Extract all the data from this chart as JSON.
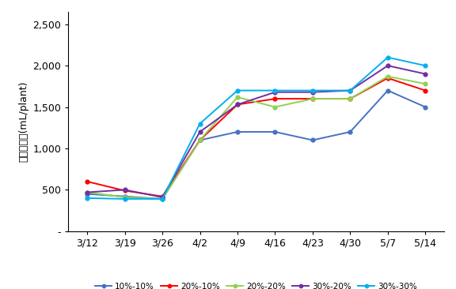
{
  "x_labels": [
    "3/12",
    "3/19",
    "3/26",
    "4/2",
    "4/9",
    "4/16",
    "4/23",
    "4/30",
    "5/7",
    "5/14"
  ],
  "series": [
    {
      "label": "10%-10%",
      "color": "#4472C4",
      "values": [
        450,
        420,
        390,
        1100,
        1200,
        1200,
        1100,
        1200,
        1700,
        1500
      ]
    },
    {
      "label": "20%-10%",
      "color": "#FF0000",
      "values": [
        600,
        490,
        420,
        1100,
        1530,
        1600,
        1600,
        1600,
        1850,
        1700
      ]
    },
    {
      "label": "20%-20%",
      "color": "#92D050",
      "values": [
        470,
        410,
        390,
        1100,
        1620,
        1500,
        1600,
        1600,
        1870,
        1780
      ]
    },
    {
      "label": "30%-20%",
      "color": "#7030A0",
      "values": [
        470,
        500,
        410,
        1200,
        1530,
        1680,
        1680,
        1700,
        2000,
        1900
      ]
    },
    {
      "label": "30%-30%",
      "color": "#00B0F0",
      "values": [
        400,
        390,
        390,
        1300,
        1700,
        1700,
        1700,
        1700,
        2100,
        2000
      ]
    }
  ],
  "ylabel": "일일급액량(mL/plant)",
  "yticks": [
    0,
    500,
    1000,
    1500,
    2000,
    2500
  ],
  "ytick_labels": [
    "-",
    "500",
    "1,000",
    "1,500",
    "2,000",
    "2,500"
  ],
  "ylim": [
    0,
    2650
  ],
  "background_color": "#ffffff"
}
